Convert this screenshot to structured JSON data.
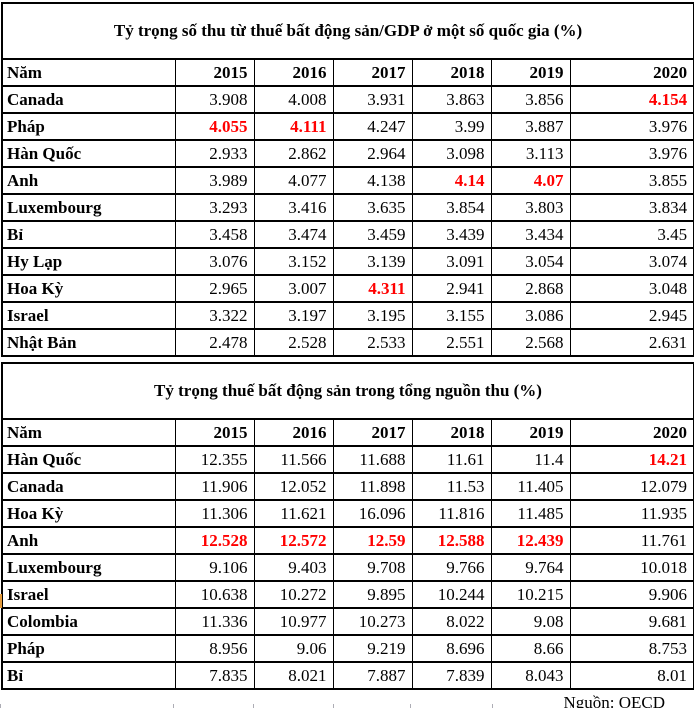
{
  "colors": {
    "highlight": "#ff0000",
    "text": "#000000",
    "border": "#000000",
    "background": "#ffffff"
  },
  "tables": [
    {
      "title": "Tỷ trọng số thu từ thuế bất động sản/GDP ở một số quốc gia (%)",
      "header": [
        "Năm",
        "2015",
        "2016",
        "2017",
        "2018",
        "2019",
        "2020"
      ],
      "rows": [
        {
          "country": "Canada",
          "values": [
            "3.908",
            "4.008",
            "3.931",
            "3.863",
            "3.856",
            "4.154"
          ],
          "red": [
            5
          ]
        },
        {
          "country": "Pháp",
          "values": [
            "4.055",
            "4.111",
            "4.247",
            "3.99",
            "3.887",
            "3.976"
          ],
          "red": [
            0,
            1
          ]
        },
        {
          "country": "Hàn Quốc",
          "values": [
            "2.933",
            "2.862",
            "2.964",
            "3.098",
            "3.113",
            "3.976"
          ],
          "red": []
        },
        {
          "country": "Anh",
          "values": [
            "3.989",
            "4.077",
            "4.138",
            "4.14",
            "4.07",
            "3.855"
          ],
          "red": [
            3,
            4
          ]
        },
        {
          "country": "Luxembourg",
          "values": [
            "3.293",
            "3.416",
            "3.635",
            "3.854",
            "3.803",
            "3.834"
          ],
          "red": []
        },
        {
          "country": "Bỉ",
          "values": [
            "3.458",
            "3.474",
            "3.459",
            "3.439",
            "3.434",
            "3.45"
          ],
          "red": []
        },
        {
          "country": "Hy Lạp",
          "values": [
            "3.076",
            "3.152",
            "3.139",
            "3.091",
            "3.054",
            "3.074"
          ],
          "red": []
        },
        {
          "country": "Hoa Kỳ",
          "values": [
            "2.965",
            "3.007",
            "4.311",
            "2.941",
            "2.868",
            "3.048"
          ],
          "red": [
            2
          ]
        },
        {
          "country": "Israel",
          "values": [
            "3.322",
            "3.197",
            "3.195",
            "3.155",
            "3.086",
            "2.945"
          ],
          "red": []
        },
        {
          "country": "Nhật Bản",
          "values": [
            "2.478",
            "2.528",
            "2.533",
            "2.551",
            "2.568",
            "2.631"
          ],
          "red": []
        }
      ]
    },
    {
      "title": "Tỷ trọng thuế bất động sản trong tổng nguồn thu (%)",
      "header": [
        "Năm",
        "2015",
        "2016",
        "2017",
        "2018",
        "2019",
        "2020"
      ],
      "rows": [
        {
          "country": "Hàn Quốc",
          "values": [
            "12.355",
            "11.566",
            "11.688",
            "11.61",
            "11.4",
            "14.21"
          ],
          "red": [
            5
          ]
        },
        {
          "country": "Canada",
          "values": [
            "11.906",
            "12.052",
            "11.898",
            "11.53",
            "11.405",
            "12.079"
          ],
          "red": []
        },
        {
          "country": "Hoa Kỳ",
          "values": [
            "11.306",
            "11.621",
            "16.096",
            "11.816",
            "11.485",
            "11.935"
          ],
          "red": []
        },
        {
          "country": "Anh",
          "values": [
            "12.528",
            "12.572",
            "12.59",
            "12.588",
            "12.439",
            "11.761"
          ],
          "red": [
            0,
            1,
            2,
            3,
            4
          ]
        },
        {
          "country": "Luxembourg",
          "values": [
            "9.106",
            "9.403",
            "9.708",
            "9.766",
            "9.764",
            "10.018"
          ],
          "red": []
        },
        {
          "country": "Israel",
          "values": [
            "10.638",
            "10.272",
            "9.895",
            "10.244",
            "10.215",
            "9.906"
          ],
          "red": []
        },
        {
          "country": "Colombia",
          "values": [
            "11.336",
            "10.977",
            "10.273",
            "8.022",
            "9.08",
            "9.681"
          ],
          "red": []
        },
        {
          "country": "Pháp",
          "values": [
            "8.956",
            "9.06",
            "9.219",
            "8.696",
            "8.66",
            "8.753"
          ],
          "red": []
        },
        {
          "country": "Bỉ",
          "values": [
            "7.835",
            "8.021",
            "7.887",
            "7.839",
            "8.043",
            "8.01"
          ],
          "red": []
        }
      ]
    }
  ],
  "footer": {
    "source_label": "Nguồn: OECD"
  }
}
